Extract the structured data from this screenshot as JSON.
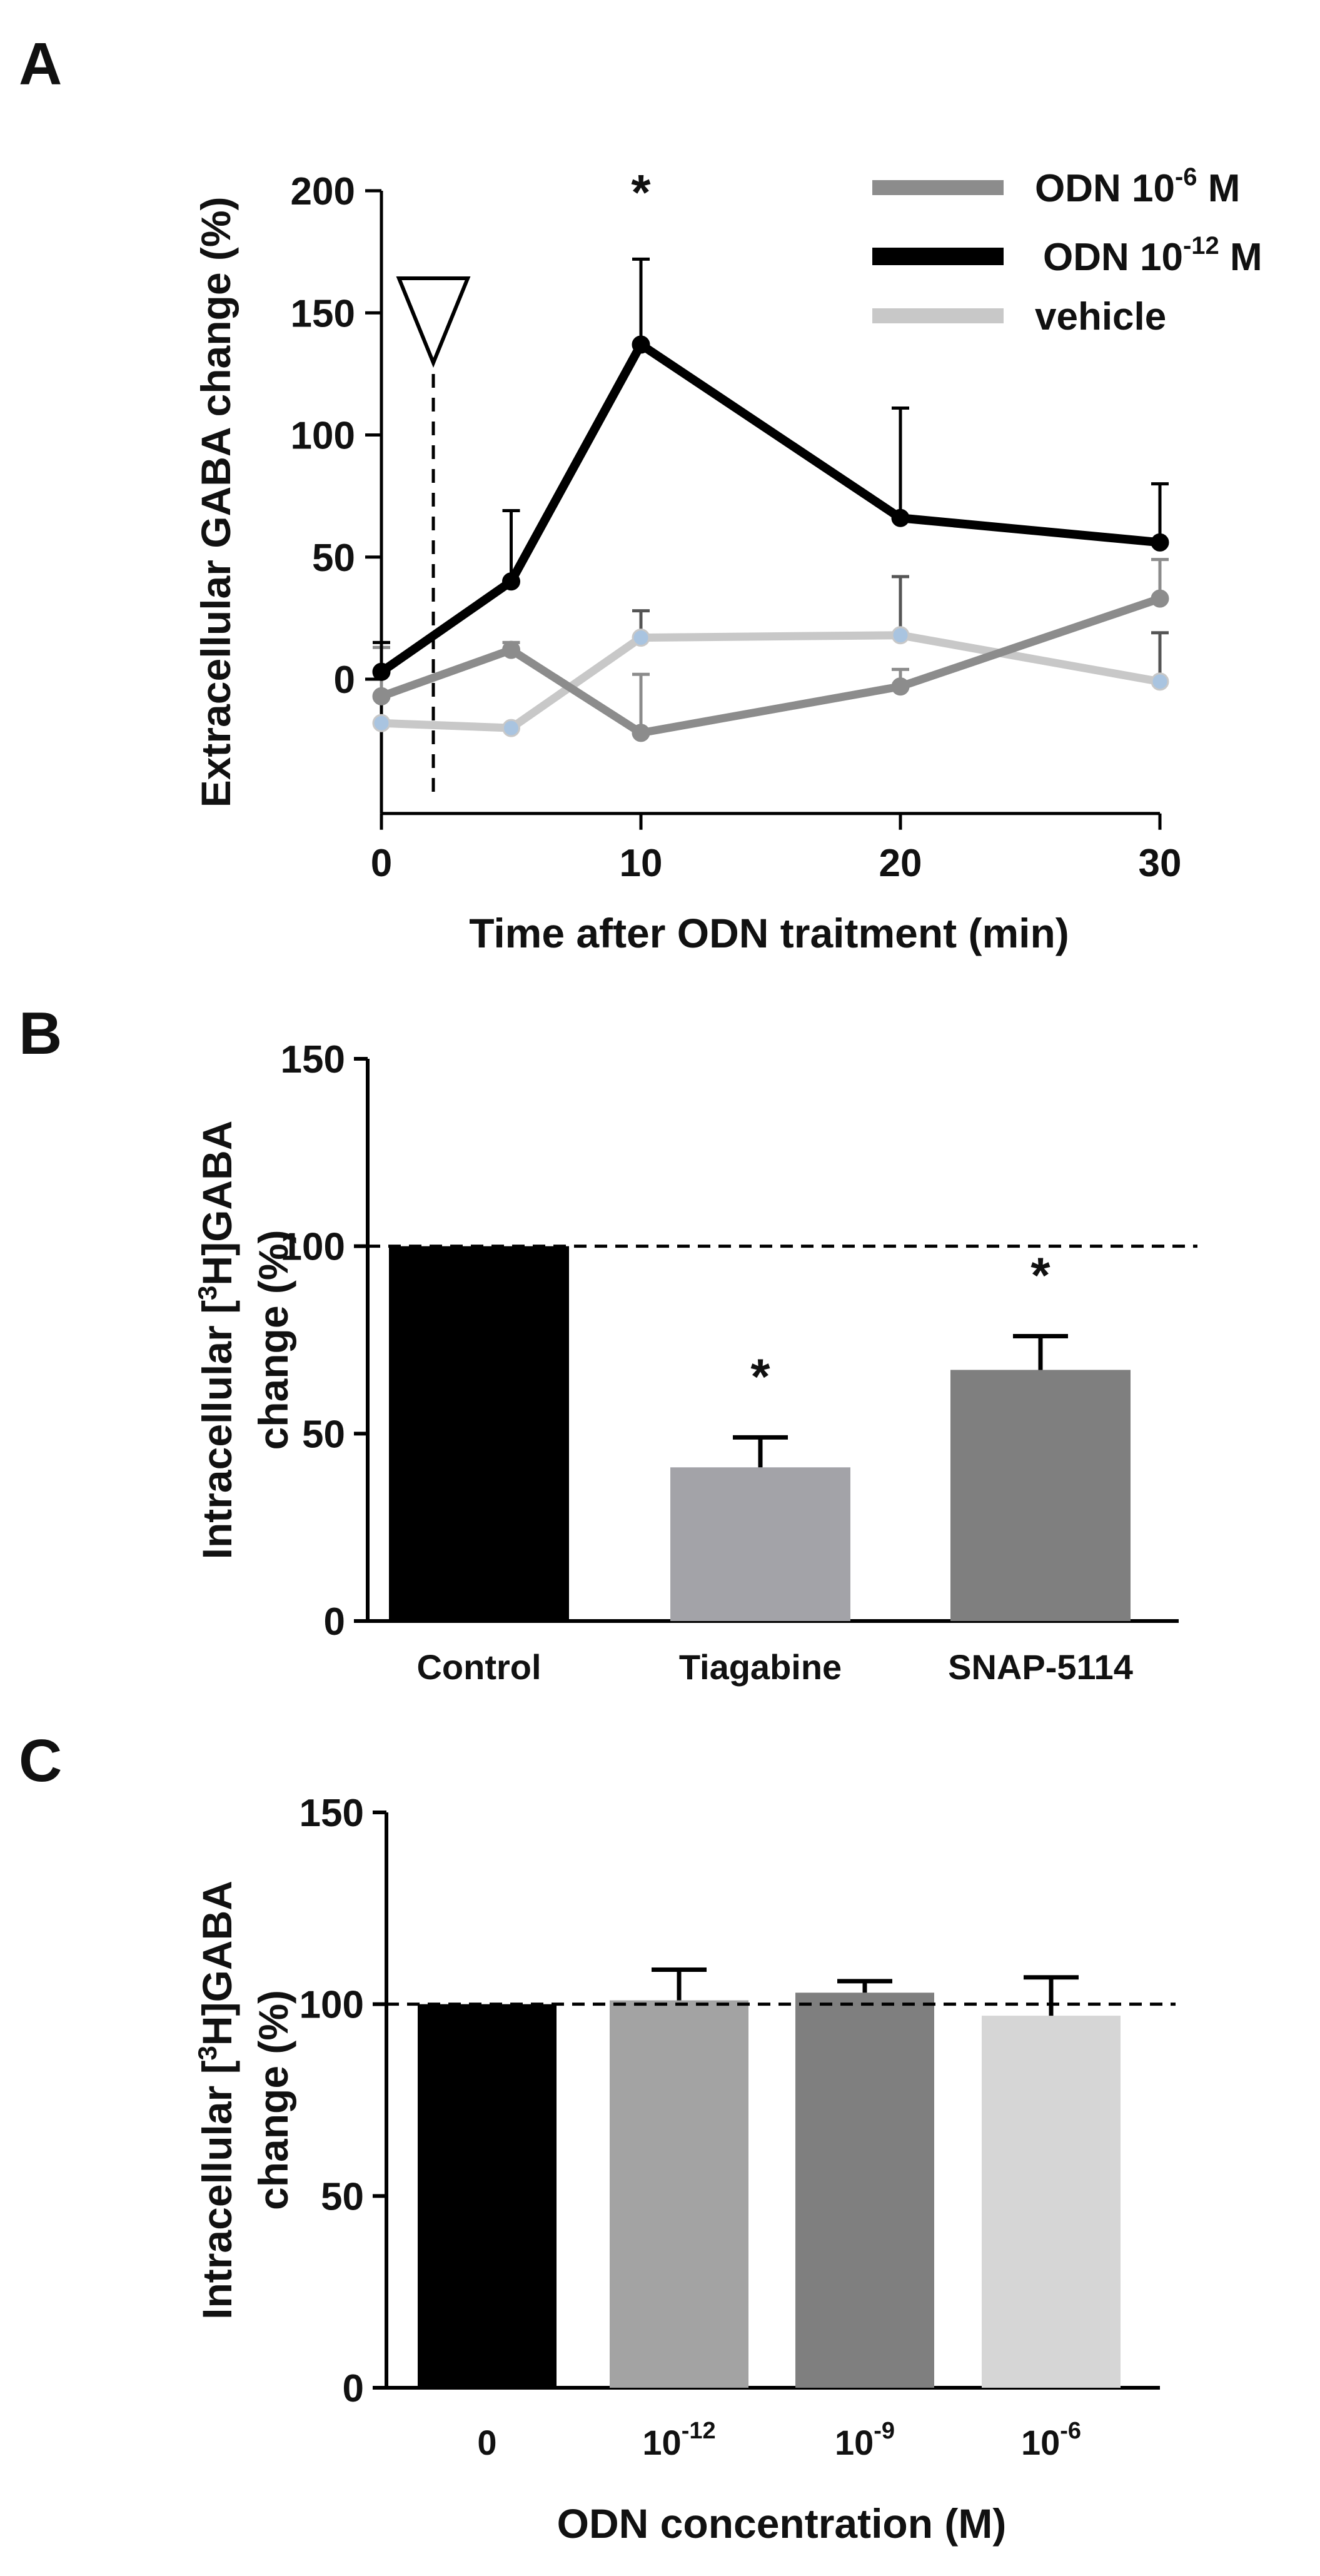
{
  "panel_labels": {
    "a": "A",
    "b": "B",
    "c": "C"
  },
  "chart_data": [
    {
      "type": "line",
      "panel": "A",
      "title": "",
      "xlabel": "Time after ODN traitment (min)",
      "ylabel": "Extracellular GABA change (%)",
      "xlim": [
        0,
        30
      ],
      "ylim": [
        -55,
        200
      ],
      "x_ticks": [
        "0",
        "10",
        "20",
        "30"
      ],
      "y_ticks": [
        "0",
        "50",
        "100",
        "150",
        "200"
      ],
      "x": [
        0,
        5,
        10,
        20,
        30
      ],
      "treatment_marker": {
        "x": 2
      },
      "series": [
        {
          "name_base": "ODN 10",
          "name_exp": "-6",
          "name_unit": " M",
          "color": "#8c8c8c",
          "values": [
            -7,
            12,
            -22,
            -3,
            33
          ],
          "errors": [
            20,
            3,
            24,
            7,
            16
          ]
        },
        {
          "name_base": "ODN 10",
          "name_exp": "-12",
          "name_unit": " M",
          "color": "#000000",
          "values": [
            3,
            40,
            137,
            66,
            56
          ],
          "errors": [
            12,
            29,
            35,
            45,
            24
          ]
        },
        {
          "name": "vehicle",
          "color": "#c8c8c8",
          "marker_color": "#a9c4e0",
          "values": [
            -18,
            -20,
            17,
            18,
            -1
          ],
          "errors": [
            0,
            0,
            11,
            24,
            20
          ]
        }
      ],
      "significance": [
        {
          "x": 10,
          "label": "*"
        }
      ]
    },
    {
      "type": "bar",
      "panel": "B",
      "ylabel_lines": [
        "Intracellular [³H]GABA",
        "change  (%)"
      ],
      "categories": [
        "Control",
        "Tiagabine",
        "SNAP-5114"
      ],
      "values": [
        100,
        41,
        67
      ],
      "errors": [
        0,
        8,
        9
      ],
      "colors": [
        "#000000",
        "#a3a3a8",
        "#7f7f7f"
      ],
      "ylim": [
        0,
        150
      ],
      "y_ticks": [
        "0",
        "50",
        "100",
        "150"
      ],
      "reference_line": 100,
      "significance": [
        "",
        "*",
        "*"
      ]
    },
    {
      "type": "bar",
      "panel": "C",
      "ylabel_lines": [
        "Intracellular [³H]GABA",
        "change  (%)"
      ],
      "xlabel": "ODN concentration (M)",
      "categories": [
        {
          "base": "0",
          "exp": ""
        },
        {
          "base": "10",
          "exp": "-12"
        },
        {
          "base": "10",
          "exp": "-9"
        },
        {
          "base": "10",
          "exp": "-6"
        }
      ],
      "values": [
        100,
        101,
        103,
        97
      ],
      "errors": [
        0,
        8,
        3,
        10
      ],
      "colors": [
        "#000000",
        "#a3a3a3",
        "#7f7f7f",
        "#d6d6d6"
      ],
      "ylim": [
        0,
        150
      ],
      "y_ticks": [
        "0",
        "50",
        "100",
        "150"
      ],
      "reference_line": 100
    }
  ]
}
